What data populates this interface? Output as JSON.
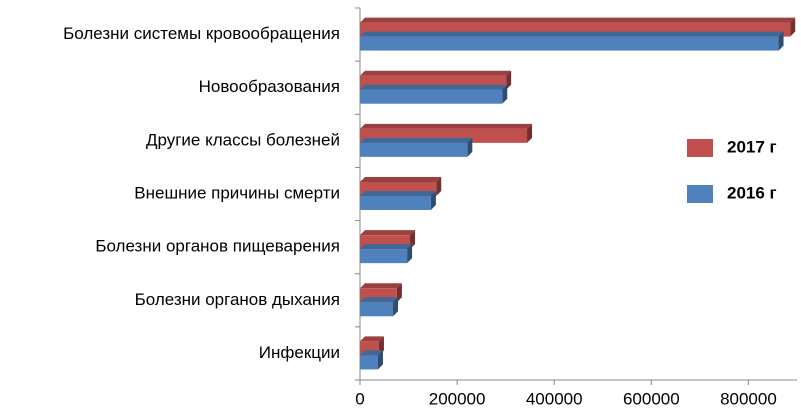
{
  "chart_data": {
    "type": "bar",
    "orientation": "horizontal",
    "categories": [
      "Болезни системы кровообращения",
      "Новообразования",
      "Другие классы болезней",
      "Внешние причины смерти",
      "Болезни органов пищеварения",
      "Болезни органов дыхания",
      "Инфекции"
    ],
    "series": [
      {
        "name": "2017 г",
        "color": "#c0504d",
        "values": [
          886000,
          301000,
          344000,
          157000,
          103000,
          76000,
          39000
        ]
      },
      {
        "name": "2016 г",
        "color": "#4f81bd",
        "values": [
          862000,
          293000,
          221000,
          146000,
          97000,
          68000,
          37000
        ]
      }
    ],
    "xlim": [
      0,
      900000
    ],
    "xticks": [
      0,
      200000,
      400000,
      600000,
      800000
    ],
    "legend": "right"
  }
}
